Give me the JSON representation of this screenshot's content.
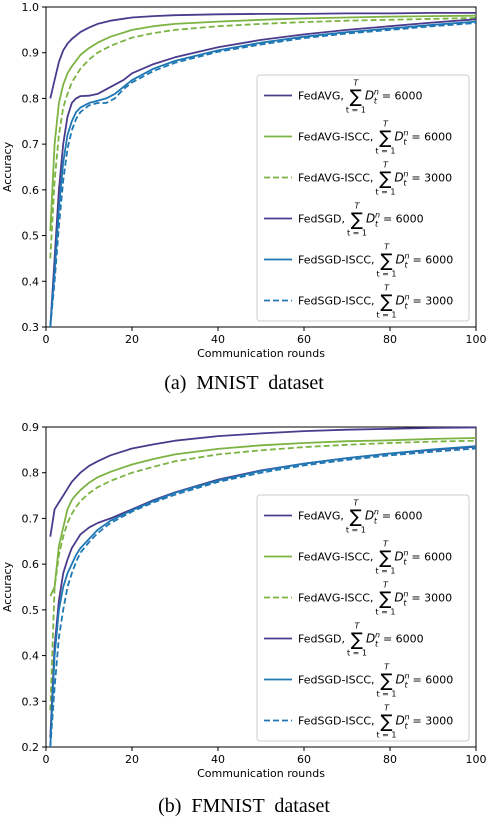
{
  "chart_data": [
    {
      "type": "line",
      "caption": "(a)  MNIST  dataset",
      "xlabel": "Communication rounds",
      "ylabel": "Accuracy",
      "xlim": [
        0,
        100
      ],
      "ylim": [
        0.3,
        1.0
      ],
      "xticks": [
        0,
        20,
        40,
        60,
        80,
        100
      ],
      "yticks": [
        0.3,
        0.4,
        0.5,
        0.6,
        0.7,
        0.8,
        0.9,
        1.0
      ],
      "legend_position": "center-right",
      "grid": false,
      "series": [
        {
          "name": "FedAVG",
          "sum_label": "6000",
          "color": "#4b3b8c",
          "dash": "solid",
          "x": [
            1,
            2,
            3,
            4,
            5,
            6,
            8,
            10,
            12,
            15,
            20,
            25,
            30,
            40,
            50,
            60,
            70,
            80,
            90,
            100
          ],
          "y": [
            0.8,
            0.84,
            0.88,
            0.905,
            0.92,
            0.93,
            0.945,
            0.955,
            0.963,
            0.97,
            0.977,
            0.98,
            0.982,
            0.984,
            0.985,
            0.985,
            0.986,
            0.986,
            0.987,
            0.987
          ]
        },
        {
          "name": "FedAVG-ISCC",
          "sum_label": "6000",
          "color": "#7cb342",
          "dash": "solid",
          "x": [
            1,
            2,
            3,
            4,
            5,
            6,
            8,
            10,
            12,
            15,
            20,
            25,
            30,
            40,
            50,
            60,
            70,
            80,
            90,
            100
          ],
          "y": [
            0.51,
            0.7,
            0.79,
            0.83,
            0.855,
            0.87,
            0.895,
            0.91,
            0.922,
            0.935,
            0.95,
            0.958,
            0.963,
            0.968,
            0.972,
            0.975,
            0.977,
            0.979,
            0.98,
            0.981
          ]
        },
        {
          "name": "FedAVG-ISCC",
          "sum_label": "3000",
          "color": "#7cb342",
          "dash": "dashed",
          "x": [
            1,
            2,
            3,
            4,
            5,
            6,
            8,
            10,
            12,
            15,
            20,
            25,
            30,
            40,
            50,
            60,
            70,
            80,
            90,
            100
          ],
          "y": [
            0.45,
            0.62,
            0.72,
            0.78,
            0.81,
            0.835,
            0.865,
            0.885,
            0.9,
            0.915,
            0.933,
            0.943,
            0.95,
            0.958,
            0.963,
            0.967,
            0.97,
            0.972,
            0.974,
            0.976
          ]
        },
        {
          "name": "FedSGD",
          "sum_label": "6000",
          "color": "#4b3b8c",
          "dash": "solid",
          "x": [
            1,
            2,
            3,
            4,
            5,
            6,
            7,
            8,
            10,
            12,
            14,
            16,
            18,
            20,
            25,
            30,
            40,
            50,
            60,
            70,
            80,
            90,
            100
          ],
          "y": [
            0.3,
            0.45,
            0.6,
            0.7,
            0.76,
            0.79,
            0.8,
            0.805,
            0.806,
            0.81,
            0.82,
            0.83,
            0.84,
            0.855,
            0.875,
            0.89,
            0.912,
            0.928,
            0.94,
            0.95,
            0.958,
            0.966,
            0.973
          ]
        },
        {
          "name": "FedSGD-ISCC",
          "sum_label": "6000",
          "color": "#1f77b4",
          "dash": "solid",
          "x": [
            1,
            2,
            3,
            4,
            5,
            6,
            7,
            8,
            10,
            12,
            14,
            16,
            18,
            20,
            25,
            30,
            40,
            50,
            60,
            70,
            80,
            90,
            100
          ],
          "y": [
            0.3,
            0.42,
            0.56,
            0.66,
            0.72,
            0.75,
            0.77,
            0.78,
            0.79,
            0.795,
            0.8,
            0.81,
            0.825,
            0.84,
            0.865,
            0.882,
            0.905,
            0.922,
            0.935,
            0.945,
            0.953,
            0.961,
            0.968
          ]
        },
        {
          "name": "FedSGD-ISCC",
          "sum_label": "3000",
          "color": "#1f77b4",
          "dash": "dashed",
          "x": [
            1,
            2,
            3,
            4,
            5,
            6,
            7,
            8,
            10,
            12,
            14,
            16,
            18,
            20,
            25,
            30,
            40,
            50,
            60,
            70,
            80,
            90,
            100
          ],
          "y": [
            0.3,
            0.4,
            0.52,
            0.62,
            0.69,
            0.73,
            0.755,
            0.77,
            0.785,
            0.79,
            0.79,
            0.8,
            0.82,
            0.835,
            0.86,
            0.878,
            0.902,
            0.918,
            0.932,
            0.942,
            0.95,
            0.958,
            0.965
          ]
        }
      ]
    },
    {
      "type": "line",
      "caption": "(b)  FMNIST  dataset",
      "xlabel": "Communication rounds",
      "ylabel": "Accuracy",
      "xlim": [
        0,
        100
      ],
      "ylim": [
        0.2,
        0.9
      ],
      "xticks": [
        0,
        20,
        40,
        60,
        80,
        100
      ],
      "yticks": [
        0.2,
        0.3,
        0.4,
        0.5,
        0.6,
        0.7,
        0.8,
        0.9
      ],
      "legend_position": "center-right",
      "grid": false,
      "series": [
        {
          "name": "FedAVG",
          "sum_label": "6000",
          "color": "#4b3b8c",
          "dash": "solid",
          "x": [
            1,
            2,
            3,
            4,
            5,
            6,
            7,
            8,
            10,
            12,
            15,
            20,
            25,
            30,
            40,
            50,
            60,
            70,
            80,
            90,
            100
          ],
          "y": [
            0.66,
            0.72,
            0.735,
            0.75,
            0.765,
            0.78,
            0.79,
            0.8,
            0.815,
            0.825,
            0.838,
            0.853,
            0.862,
            0.87,
            0.88,
            0.886,
            0.891,
            0.894,
            0.896,
            0.898,
            0.899
          ]
        },
        {
          "name": "FedAVG-ISCC",
          "sum_label": "6000",
          "color": "#7cb342",
          "dash": "solid",
          "x": [
            1,
            2,
            3,
            4,
            5,
            6,
            7,
            8,
            10,
            12,
            15,
            20,
            25,
            30,
            40,
            50,
            60,
            70,
            80,
            90,
            100
          ],
          "y": [
            0.53,
            0.55,
            0.64,
            0.68,
            0.72,
            0.74,
            0.752,
            0.762,
            0.778,
            0.79,
            0.802,
            0.818,
            0.83,
            0.84,
            0.852,
            0.86,
            0.865,
            0.869,
            0.871,
            0.874,
            0.876
          ]
        },
        {
          "name": "FedAVG-ISCC",
          "sum_label": "3000",
          "color": "#7cb342",
          "dash": "dashed",
          "x": [
            1,
            2,
            3,
            4,
            5,
            6,
            7,
            8,
            10,
            12,
            15,
            20,
            25,
            30,
            40,
            50,
            60,
            70,
            80,
            90,
            100
          ],
          "y": [
            0.28,
            0.55,
            0.62,
            0.66,
            0.69,
            0.71,
            0.725,
            0.738,
            0.755,
            0.768,
            0.782,
            0.8,
            0.813,
            0.825,
            0.84,
            0.849,
            0.856,
            0.861,
            0.865,
            0.868,
            0.87
          ]
        },
        {
          "name": "FedSGD",
          "sum_label": "6000",
          "color": "#4b3b8c",
          "dash": "solid",
          "x": [
            1,
            2,
            3,
            4,
            5,
            6,
            7,
            8,
            10,
            12,
            15,
            20,
            25,
            30,
            40,
            50,
            60,
            70,
            80,
            90,
            100
          ],
          "y": [
            0.22,
            0.42,
            0.52,
            0.58,
            0.61,
            0.635,
            0.65,
            0.665,
            0.68,
            0.69,
            0.7,
            0.72,
            0.74,
            0.757,
            0.785,
            0.805,
            0.82,
            0.832,
            0.842,
            0.85,
            0.857
          ]
        },
        {
          "name": "FedSGD-ISCC",
          "sum_label": "6000",
          "color": "#1f77b4",
          "dash": "solid",
          "x": [
            1,
            2,
            3,
            4,
            5,
            6,
            7,
            8,
            10,
            12,
            15,
            20,
            25,
            30,
            40,
            50,
            60,
            70,
            80,
            90,
            100
          ],
          "y": [
            0.2,
            0.4,
            0.5,
            0.55,
            0.58,
            0.6,
            0.62,
            0.635,
            0.655,
            0.675,
            0.695,
            0.718,
            0.738,
            0.756,
            0.783,
            0.804,
            0.82,
            0.832,
            0.842,
            0.851,
            0.858
          ]
        },
        {
          "name": "FedSGD-ISCC",
          "sum_label": "3000",
          "color": "#1f77b4",
          "dash": "dashed",
          "x": [
            1,
            2,
            3,
            4,
            5,
            6,
            7,
            8,
            10,
            12,
            15,
            20,
            25,
            30,
            40,
            50,
            60,
            70,
            80,
            90,
            100
          ],
          "y": [
            0.2,
            0.33,
            0.44,
            0.5,
            0.55,
            0.58,
            0.605,
            0.625,
            0.648,
            0.668,
            0.69,
            0.715,
            0.735,
            0.752,
            0.78,
            0.8,
            0.816,
            0.828,
            0.838,
            0.846,
            0.853
          ]
        }
      ]
    }
  ]
}
